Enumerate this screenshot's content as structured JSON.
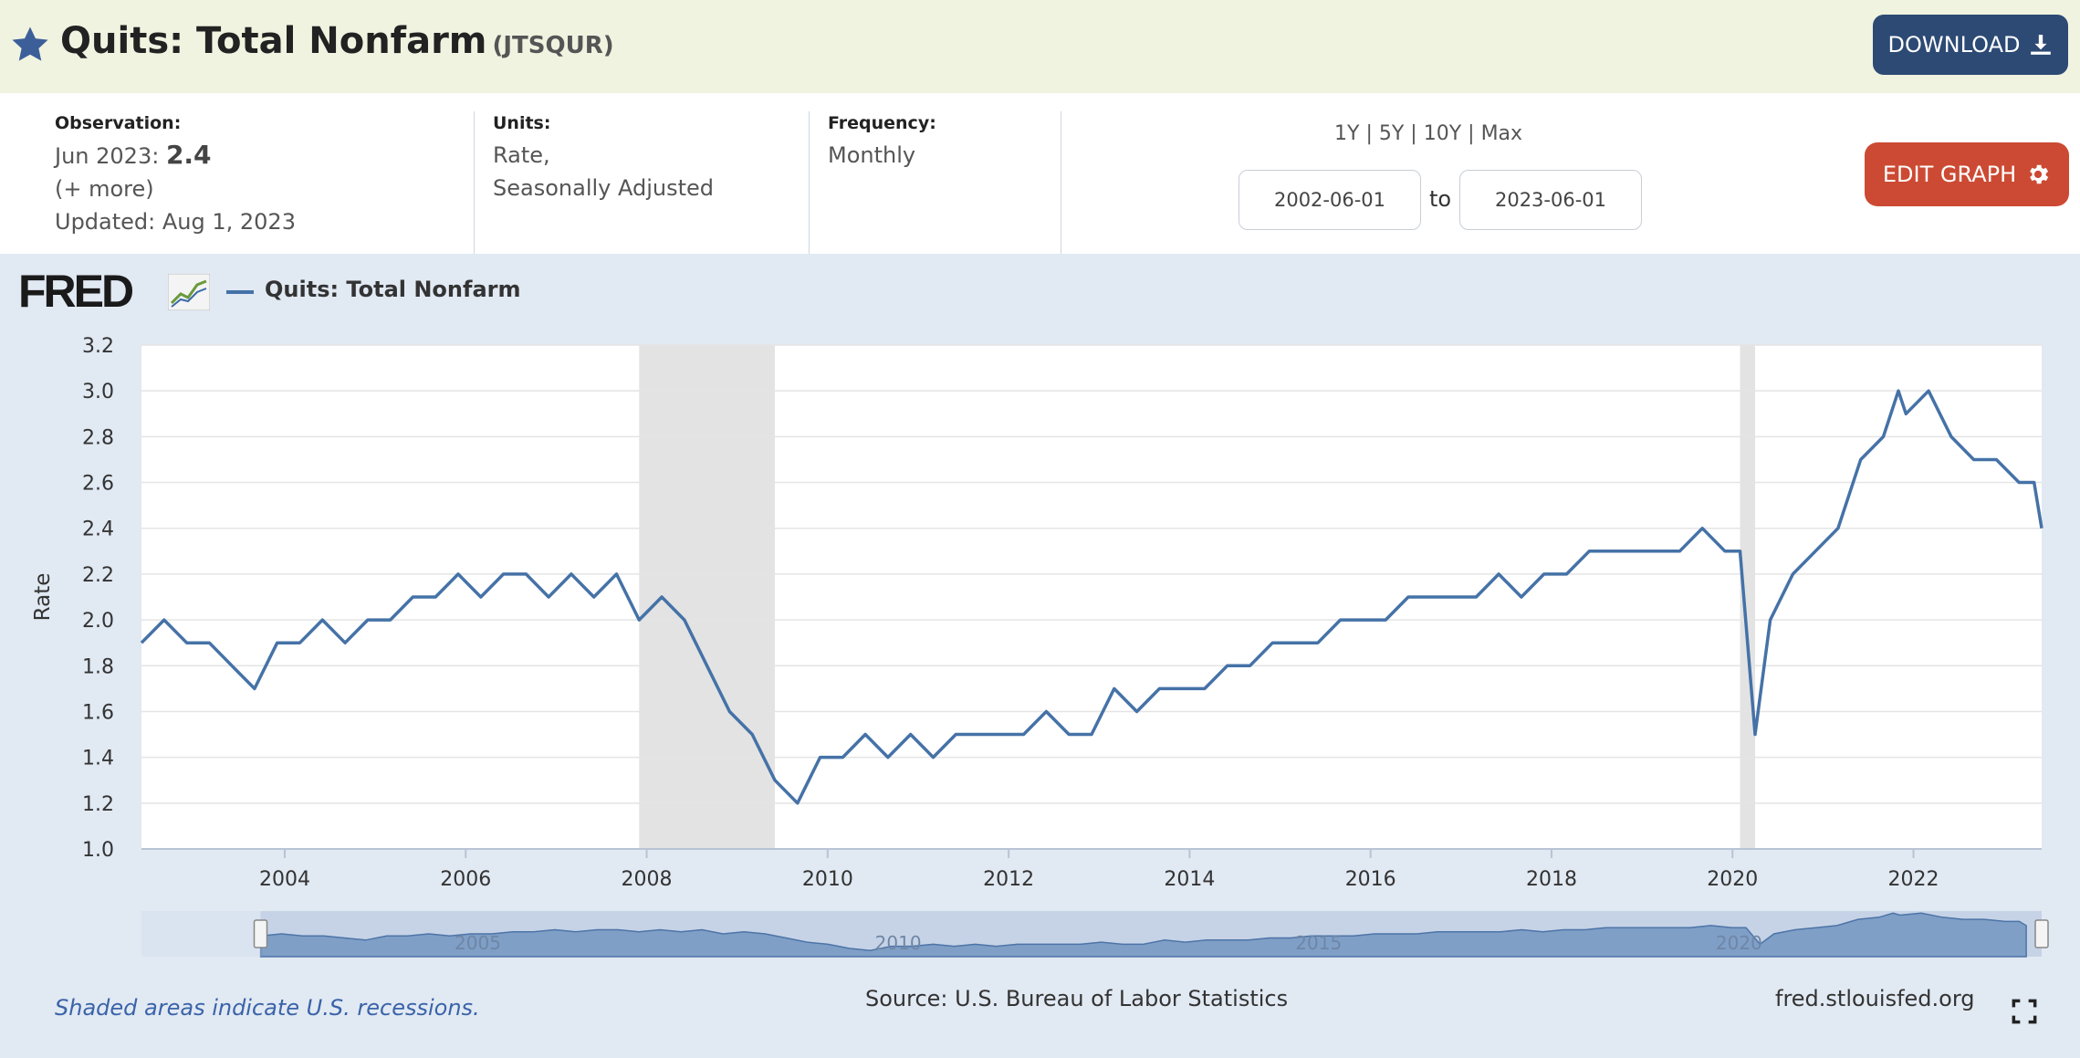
{
  "header": {
    "title": "Quits: Total Nonfarm",
    "series_id": "(JTSQUR)",
    "download_label": "DOWNLOAD",
    "accent": "#2c4a74"
  },
  "info": {
    "observation_label": "Observation:",
    "observation_period": "Jun 2023:",
    "observation_value": "2.4",
    "more": "(+ more)",
    "updated": "Updated: Aug 1, 2023",
    "units_label": "Units:",
    "units_line1": "Rate,",
    "units_line2": "Seasonally Adjusted",
    "frequency_label": "Frequency:",
    "frequency_value": "Monthly"
  },
  "controls": {
    "range_1y": "1Y",
    "range_5y": "5Y",
    "range_10y": "10Y",
    "range_max": "Max",
    "separator": "|",
    "start_date": "2002-06-01",
    "to_label": "to",
    "end_date": "2023-06-01",
    "edit_label": "EDIT GRAPH",
    "edit_color": "#cc4a33"
  },
  "chart_meta": {
    "logo_text": "FRED",
    "legend_label": "Quits: Total Nonfarm",
    "footnote": "Shaded areas indicate U.S. recessions.",
    "source": "Source: U.S. Bureau of Labor Statistics",
    "site": "fred.stlouisfed.org",
    "navigator_labels": [
      "2005",
      "2010",
      "2015",
      "2020"
    ]
  },
  "chart_data": {
    "type": "line",
    "ylabel": "Rate",
    "ylim": [
      1.0,
      3.2
    ],
    "yticks": [
      1.0,
      1.2,
      1.4,
      1.6,
      1.8,
      2.0,
      2.2,
      2.4,
      2.6,
      2.8,
      3.0,
      3.2
    ],
    "xlim": [
      "2002-06",
      "2023-06"
    ],
    "xticks": [
      "2004",
      "2006",
      "2008",
      "2010",
      "2012",
      "2014",
      "2016",
      "2018",
      "2020",
      "2022"
    ],
    "grid": true,
    "line_color": "#4572a7",
    "recessions": [
      [
        "2007-12",
        "2009-06"
      ],
      [
        "2020-02",
        "2020-04"
      ]
    ],
    "series": [
      {
        "name": "Quits: Total Nonfarm",
        "x": [
          "2002-06",
          "2002-09",
          "2002-12",
          "2003-03",
          "2003-06",
          "2003-09",
          "2003-12",
          "2004-03",
          "2004-06",
          "2004-09",
          "2004-12",
          "2005-03",
          "2005-06",
          "2005-09",
          "2005-12",
          "2006-03",
          "2006-06",
          "2006-09",
          "2006-12",
          "2007-03",
          "2007-06",
          "2007-09",
          "2007-12",
          "2008-03",
          "2008-06",
          "2008-09",
          "2008-12",
          "2009-03",
          "2009-06",
          "2009-09",
          "2009-12",
          "2010-03",
          "2010-06",
          "2010-09",
          "2010-12",
          "2011-03",
          "2011-06",
          "2011-09",
          "2011-12",
          "2012-03",
          "2012-06",
          "2012-09",
          "2012-12",
          "2013-03",
          "2013-06",
          "2013-09",
          "2013-12",
          "2014-03",
          "2014-06",
          "2014-09",
          "2014-12",
          "2015-03",
          "2015-06",
          "2015-09",
          "2015-12",
          "2016-03",
          "2016-06",
          "2016-09",
          "2016-12",
          "2017-03",
          "2017-06",
          "2017-09",
          "2017-12",
          "2018-03",
          "2018-06",
          "2018-09",
          "2018-12",
          "2019-03",
          "2019-06",
          "2019-09",
          "2019-12",
          "2020-02",
          "2020-04",
          "2020-06",
          "2020-09",
          "2020-12",
          "2021-03",
          "2021-06",
          "2021-09",
          "2021-11",
          "2021-12",
          "2022-03",
          "2022-06",
          "2022-09",
          "2022-12",
          "2023-03",
          "2023-05",
          "2023-06"
        ],
        "values": [
          1.9,
          2.0,
          1.9,
          1.9,
          1.8,
          1.7,
          1.9,
          1.9,
          2.0,
          1.9,
          2.0,
          2.0,
          2.1,
          2.1,
          2.2,
          2.1,
          2.2,
          2.2,
          2.1,
          2.2,
          2.1,
          2.2,
          2.0,
          2.1,
          2.0,
          1.8,
          1.6,
          1.5,
          1.3,
          1.2,
          1.4,
          1.4,
          1.5,
          1.4,
          1.5,
          1.4,
          1.5,
          1.5,
          1.5,
          1.5,
          1.6,
          1.5,
          1.5,
          1.7,
          1.6,
          1.7,
          1.7,
          1.7,
          1.8,
          1.8,
          1.9,
          1.9,
          1.9,
          2.0,
          2.0,
          2.0,
          2.1,
          2.1,
          2.1,
          2.1,
          2.2,
          2.1,
          2.2,
          2.2,
          2.3,
          2.3,
          2.3,
          2.3,
          2.3,
          2.4,
          2.3,
          2.3,
          1.5,
          2.0,
          2.2,
          2.3,
          2.4,
          2.7,
          2.8,
          3.0,
          2.9,
          3.0,
          2.8,
          2.7,
          2.7,
          2.6,
          2.6,
          2.4
        ]
      }
    ]
  }
}
